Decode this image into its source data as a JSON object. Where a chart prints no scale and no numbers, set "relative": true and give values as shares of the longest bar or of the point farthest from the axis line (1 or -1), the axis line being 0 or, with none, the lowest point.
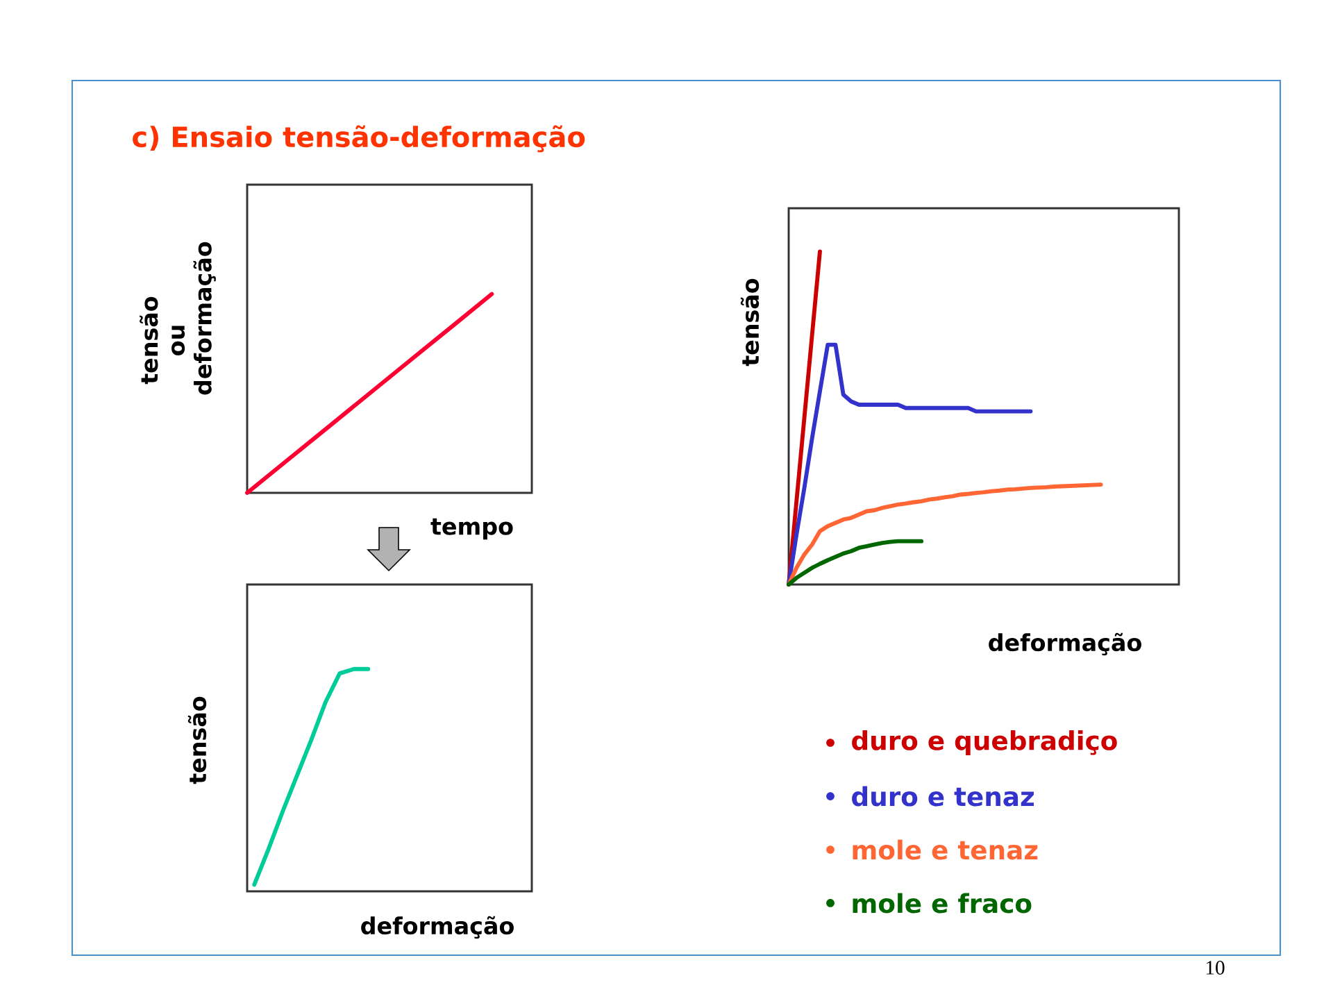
{
  "chart_data": [
    {
      "type": "line",
      "title": "c) Ensaio tensão-deformação",
      "xlabel": "tempo",
      "ylabel": "tensão ou deformação",
      "relative": true,
      "categories": [
        null,
        null,
        null,
        null,
        null,
        null,
        null
      ],
      "series": [
        {
          "color": "#ff0033",
          "values": [
            0,
            0.167,
            0.333,
            0.5,
            0.667,
            0.833,
            1
          ]
        }
      ]
    },
    {
      "type": "line",
      "xlabel": "deformação",
      "ylabel": "tensão",
      "relative": true,
      "categories": [
        null,
        null,
        null,
        null,
        null,
        null,
        null,
        null,
        null
      ],
      "series": [
        {
          "color": "#00cc99",
          "values": [
            0.03,
            0.19,
            0.36,
            0.52,
            0.68,
            0.85,
            0.98,
            1,
            1
          ]
        }
      ]
    },
    {
      "type": "line",
      "xlabel": "deformação",
      "ylabel": "tensão",
      "relative": true,
      "legend": "bottom",
      "annotations": [
        "10"
      ],
      "categories": [
        null,
        null,
        null,
        null,
        null,
        null,
        null,
        null,
        null,
        null,
        null,
        null,
        null,
        null,
        null,
        null,
        null,
        null,
        null,
        null,
        null,
        null,
        null,
        null,
        null,
        null,
        null,
        null,
        null,
        null,
        null,
        null,
        null,
        null,
        null,
        null,
        null,
        null,
        null,
        null,
        null
      ],
      "series": [
        {
          "name": "duro e quebradiço",
          "color": "#cc0000",
          "values": [
            0,
            0.25,
            0.5,
            0.75,
            1,
            null,
            null,
            null,
            null,
            null,
            null,
            null,
            null,
            null,
            null,
            null,
            null,
            null,
            null,
            null,
            null,
            null,
            null,
            null,
            null,
            null,
            null,
            null,
            null,
            null,
            null,
            null,
            null,
            null,
            null,
            null,
            null,
            null,
            null,
            null,
            null
          ]
        },
        {
          "name": "duro e tenaz",
          "color": "#3333cc",
          "values": [
            0,
            0.15,
            0.29,
            0.44,
            0.58,
            0.72,
            0.72,
            0.57,
            0.55,
            0.54,
            0.54,
            0.54,
            0.54,
            0.54,
            0.54,
            0.53,
            0.53,
            0.53,
            0.53,
            0.53,
            0.53,
            0.53,
            0.53,
            0.53,
            0.52,
            0.52,
            0.52,
            0.52,
            0.52,
            0.52,
            0.52,
            0.52,
            null,
            null,
            null,
            null,
            null,
            null,
            null,
            null,
            null
          ]
        },
        {
          "name": "mole e tenaz",
          "color": "#ff6633",
          "values": [
            0,
            0.05,
            0.09,
            0.12,
            0.16,
            0.175,
            0.185,
            0.195,
            0.2,
            0.21,
            0.22,
            0.223,
            0.23,
            0.235,
            0.24,
            0.243,
            0.247,
            0.25,
            0.255,
            0.258,
            0.262,
            0.265,
            0.27,
            0.272,
            0.275,
            0.277,
            0.28,
            0.282,
            0.285,
            0.286,
            0.288,
            0.29,
            0.291,
            0.292,
            0.294,
            0.295,
            0.296,
            0.297,
            0.298,
            0.299,
            0.3
          ]
        },
        {
          "name": "mole e fraco",
          "color": "#006600",
          "values": [
            0,
            0.02,
            0.035,
            0.05,
            0.062,
            0.073,
            0.083,
            0.093,
            0.1,
            0.11,
            0.115,
            0.12,
            0.125,
            0.128,
            0.13,
            0.13,
            0.13,
            0.13,
            null,
            null,
            null,
            null,
            null,
            null,
            null,
            null,
            null,
            null,
            null,
            null,
            null,
            null,
            null,
            null,
            null,
            null,
            null,
            null,
            null,
            null,
            null
          ]
        }
      ]
    }
  ]
}
